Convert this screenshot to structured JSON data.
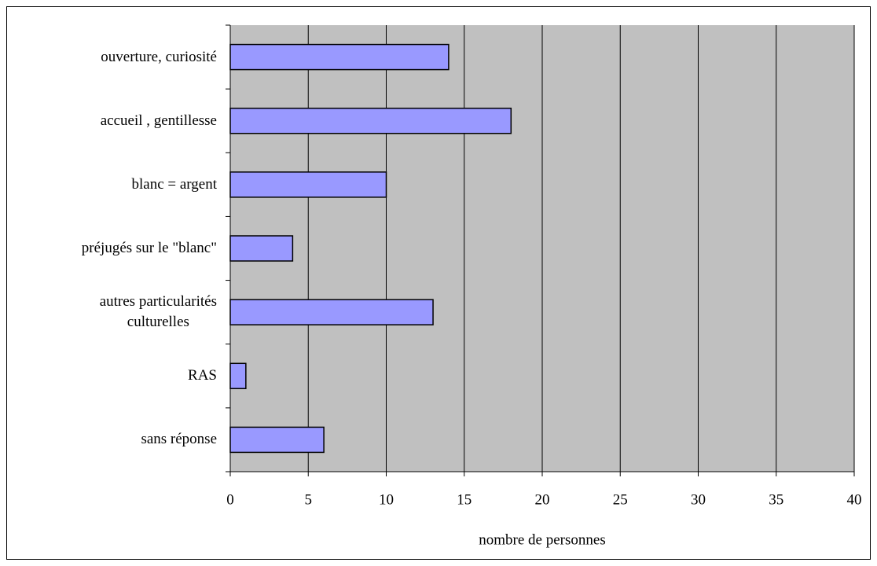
{
  "chart_data": {
    "type": "barh",
    "categories": [
      "ouverture, curiosité",
      "accueil , gentillesse",
      "blanc = argent",
      "préjugés sur le \"blanc\"",
      "autres particularités\nculturelles",
      "RAS",
      "sans réponse"
    ],
    "values": [
      14,
      18,
      10,
      4,
      13,
      1,
      6
    ],
    "color": "#9999ff",
    "xlabel": "nombre de personnes",
    "xlim": [
      0,
      40
    ],
    "xticks": [
      0,
      5,
      10,
      15,
      20,
      25,
      30,
      35,
      40
    ],
    "grid": true,
    "background": "#c0c0c0"
  }
}
